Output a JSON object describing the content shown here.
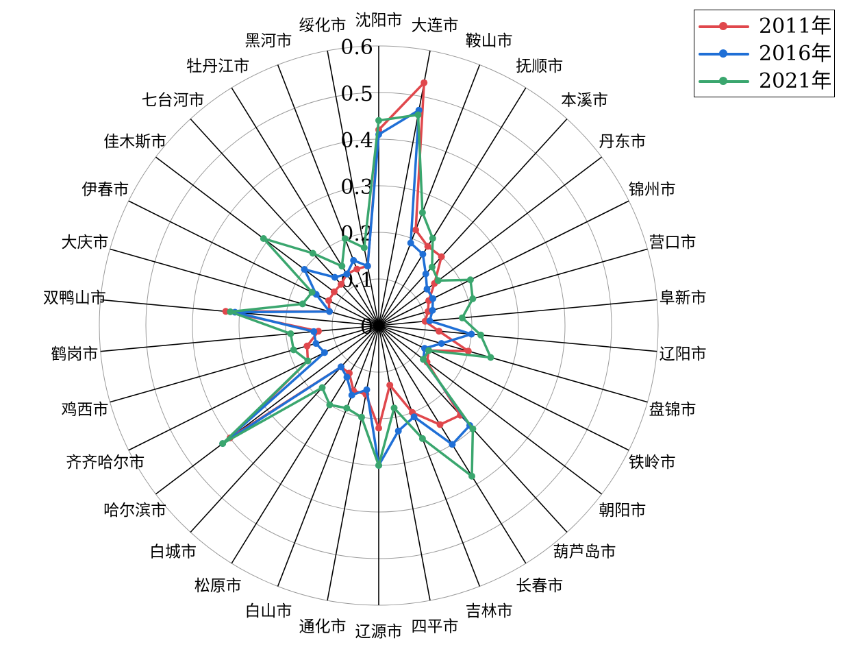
{
  "chart_data": {
    "type": "radar",
    "categories": [
      "沈阳市",
      "大连市",
      "鞍山市",
      "抚顺市",
      "本溪市",
      "丹东市",
      "锦州市",
      "营口市",
      "阜新市",
      "辽阳市",
      "盘锦市",
      "铁岭市",
      "朝阳市",
      "葫芦岛市",
      "长春市",
      "吉林市",
      "四平市",
      "辽源市",
      "通化市",
      "白山市",
      "松原市",
      "白城市",
      "哈尔滨市",
      "齐齐哈尔市",
      "鸡西市",
      "鹤岗市",
      "双鸭山市",
      "大庆市",
      "伊春市",
      "佳木斯市",
      "七台河市",
      "牡丹江市",
      "黑河市",
      "绥化市"
    ],
    "radial_ticks": [
      "0",
      "0.1",
      "0.2",
      "0.3",
      "0.4",
      "0.5",
      "0.6"
    ],
    "rlim": [
      0,
      0.6
    ],
    "grid": true,
    "legend_position": "top-right",
    "series": [
      {
        "name": "2011年",
        "color": "#e0474c",
        "values": [
          0.42,
          0.53,
          0.22,
          0.2,
          0.2,
          0.15,
          0.12,
          0.11,
          0.1,
          0.13,
          0.2,
          0.12,
          0.13,
          0.26,
          0.25,
          0.2,
          0.13,
          0.22,
          0.15,
          0.15,
          0.12,
          0.12,
          0.4,
          0.17,
          0.16,
          0.13,
          0.33,
          0.11,
          0.12,
          0.12,
          0.12,
          0.13,
          0.13,
          0.13
        ]
      },
      {
        "name": "2016年",
        "color": "#1f6fd6",
        "values": [
          0.41,
          0.47,
          0.19,
          0.18,
          0.15,
          0.13,
          0.13,
          0.12,
          0.11,
          0.2,
          0.14,
          0.11,
          0.12,
          0.29,
          0.3,
          0.21,
          0.23,
          0.3,
          0.14,
          0.16,
          0.13,
          0.12,
          0.42,
          0.13,
          0.14,
          0.14,
          0.31,
          0.11,
          0.15,
          0.2,
          0.14,
          0.13,
          0.15,
          0.13
        ]
      },
      {
        "name": "2021年",
        "color": "#3aa66e",
        "values": [
          0.44,
          0.46,
          0.26,
          0.22,
          0.17,
          0.16,
          0.22,
          0.21,
          0.18,
          0.22,
          0.25,
          0.12,
          0.12,
          0.3,
          0.38,
          0.26,
          0.18,
          0.3,
          0.2,
          0.19,
          0.2,
          0.18,
          0.42,
          0.17,
          0.19,
          0.19,
          0.32,
          0.17,
          0.16,
          0.31,
          0.21,
          0.15,
          0.2,
          0.17
        ]
      }
    ]
  }
}
